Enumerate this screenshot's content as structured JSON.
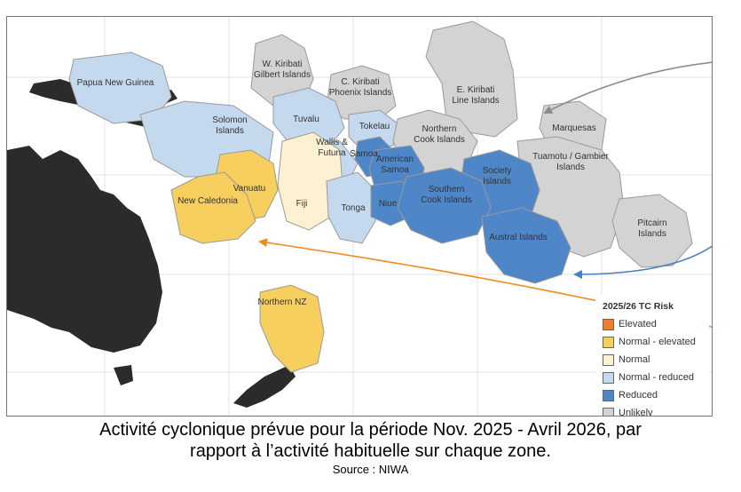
{
  "map": {
    "zones": [
      {
        "id": "papua-new-guinea",
        "label": "Papua New Guinea",
        "risk": "normal_reduced"
      },
      {
        "id": "solomon-islands",
        "label": "Solomon\nIslands",
        "risk": "normal_reduced"
      },
      {
        "id": "w-kiribati",
        "label": "W. Kiribati\nGilbert Islands",
        "risk": "unlikely"
      },
      {
        "id": "c-kiribati",
        "label": "C. Kiribati\nPhoenix  Islands",
        "risk": "unlikely"
      },
      {
        "id": "e-kiribati",
        "label": "E. Kiribati\nLine  Islands",
        "risk": "unlikely"
      },
      {
        "id": "tuvalu",
        "label": "Tuvalu",
        "risk": "normal_reduced"
      },
      {
        "id": "tokelau",
        "label": "Tokelau",
        "risk": "normal_reduced"
      },
      {
        "id": "northern-cook",
        "label": "Northern\nCook Islands",
        "risk": "unlikely"
      },
      {
        "id": "marquesas",
        "label": "Marquesas",
        "risk": "unlikely"
      },
      {
        "id": "wallis-futuna",
        "label": "Wallis &\nFutuna",
        "risk": "normal_reduced"
      },
      {
        "id": "samoa",
        "label": "Samoa",
        "risk": "reduced"
      },
      {
        "id": "american-samoa",
        "label": "American\nSamoa",
        "risk": "reduced"
      },
      {
        "id": "tuamotu-gambier",
        "label": "Tuamotu / Gambier\nIslands",
        "risk": "unlikely"
      },
      {
        "id": "society-islands",
        "label": "Society\nIslands",
        "risk": "reduced"
      },
      {
        "id": "vanuatu",
        "label": "Vanuatu",
        "risk": "normal_elevated"
      },
      {
        "id": "new-caledonia",
        "label": "New Caledonia",
        "risk": "normal_elevated"
      },
      {
        "id": "fiji",
        "label": "Fiji",
        "risk": "normal"
      },
      {
        "id": "tonga",
        "label": "Tonga",
        "risk": "normal_reduced"
      },
      {
        "id": "niue",
        "label": "Niue",
        "risk": "reduced"
      },
      {
        "id": "southern-cook",
        "label": "Southern\nCook Islands",
        "risk": "reduced"
      },
      {
        "id": "austral-islands",
        "label": "Austral Islands",
        "risk": "reduced"
      },
      {
        "id": "pitcairn-islands",
        "label": "Pitcairn\nIslands",
        "risk": "unlikely"
      },
      {
        "id": "northern-nz",
        "label": "Northern NZ",
        "risk": "normal_elevated"
      }
    ]
  },
  "colors": {
    "elevated": "#ec7f2f",
    "normal_elevated": "#f7cf5e",
    "normal": "#fdf1d1",
    "normal_reduced": "#c5d9ee",
    "reduced": "#4f86c8",
    "unlikely": "#d3d3d3",
    "land": "#2b2b2b",
    "arrow_grey": "#8c8c8c",
    "arrow_blue": "#4a7fc1",
    "arrow_orange": "#f08a1c"
  },
  "legend": {
    "title": "2025/26 TC Risk",
    "items": [
      {
        "label": "Elevated",
        "color": "#ec7f2f"
      },
      {
        "label": "Normal - elevated",
        "color": "#f7cf5e"
      },
      {
        "label": "Normal",
        "color": "#fdf1d1"
      },
      {
        "label": "Normal - reduced",
        "color": "#c5d9ee"
      },
      {
        "label": "Reduced",
        "color": "#4f86c8"
      },
      {
        "label": "Unlikely",
        "color": "#d3d3d3"
      }
    ]
  },
  "caption": {
    "line1": "Activité cyclonique prévue pour la période Nov. 2025 - Avril 2026, par",
    "line2": "rapport à l’activité habituelle sur chaque zone.",
    "source": "Source : NIWA"
  }
}
